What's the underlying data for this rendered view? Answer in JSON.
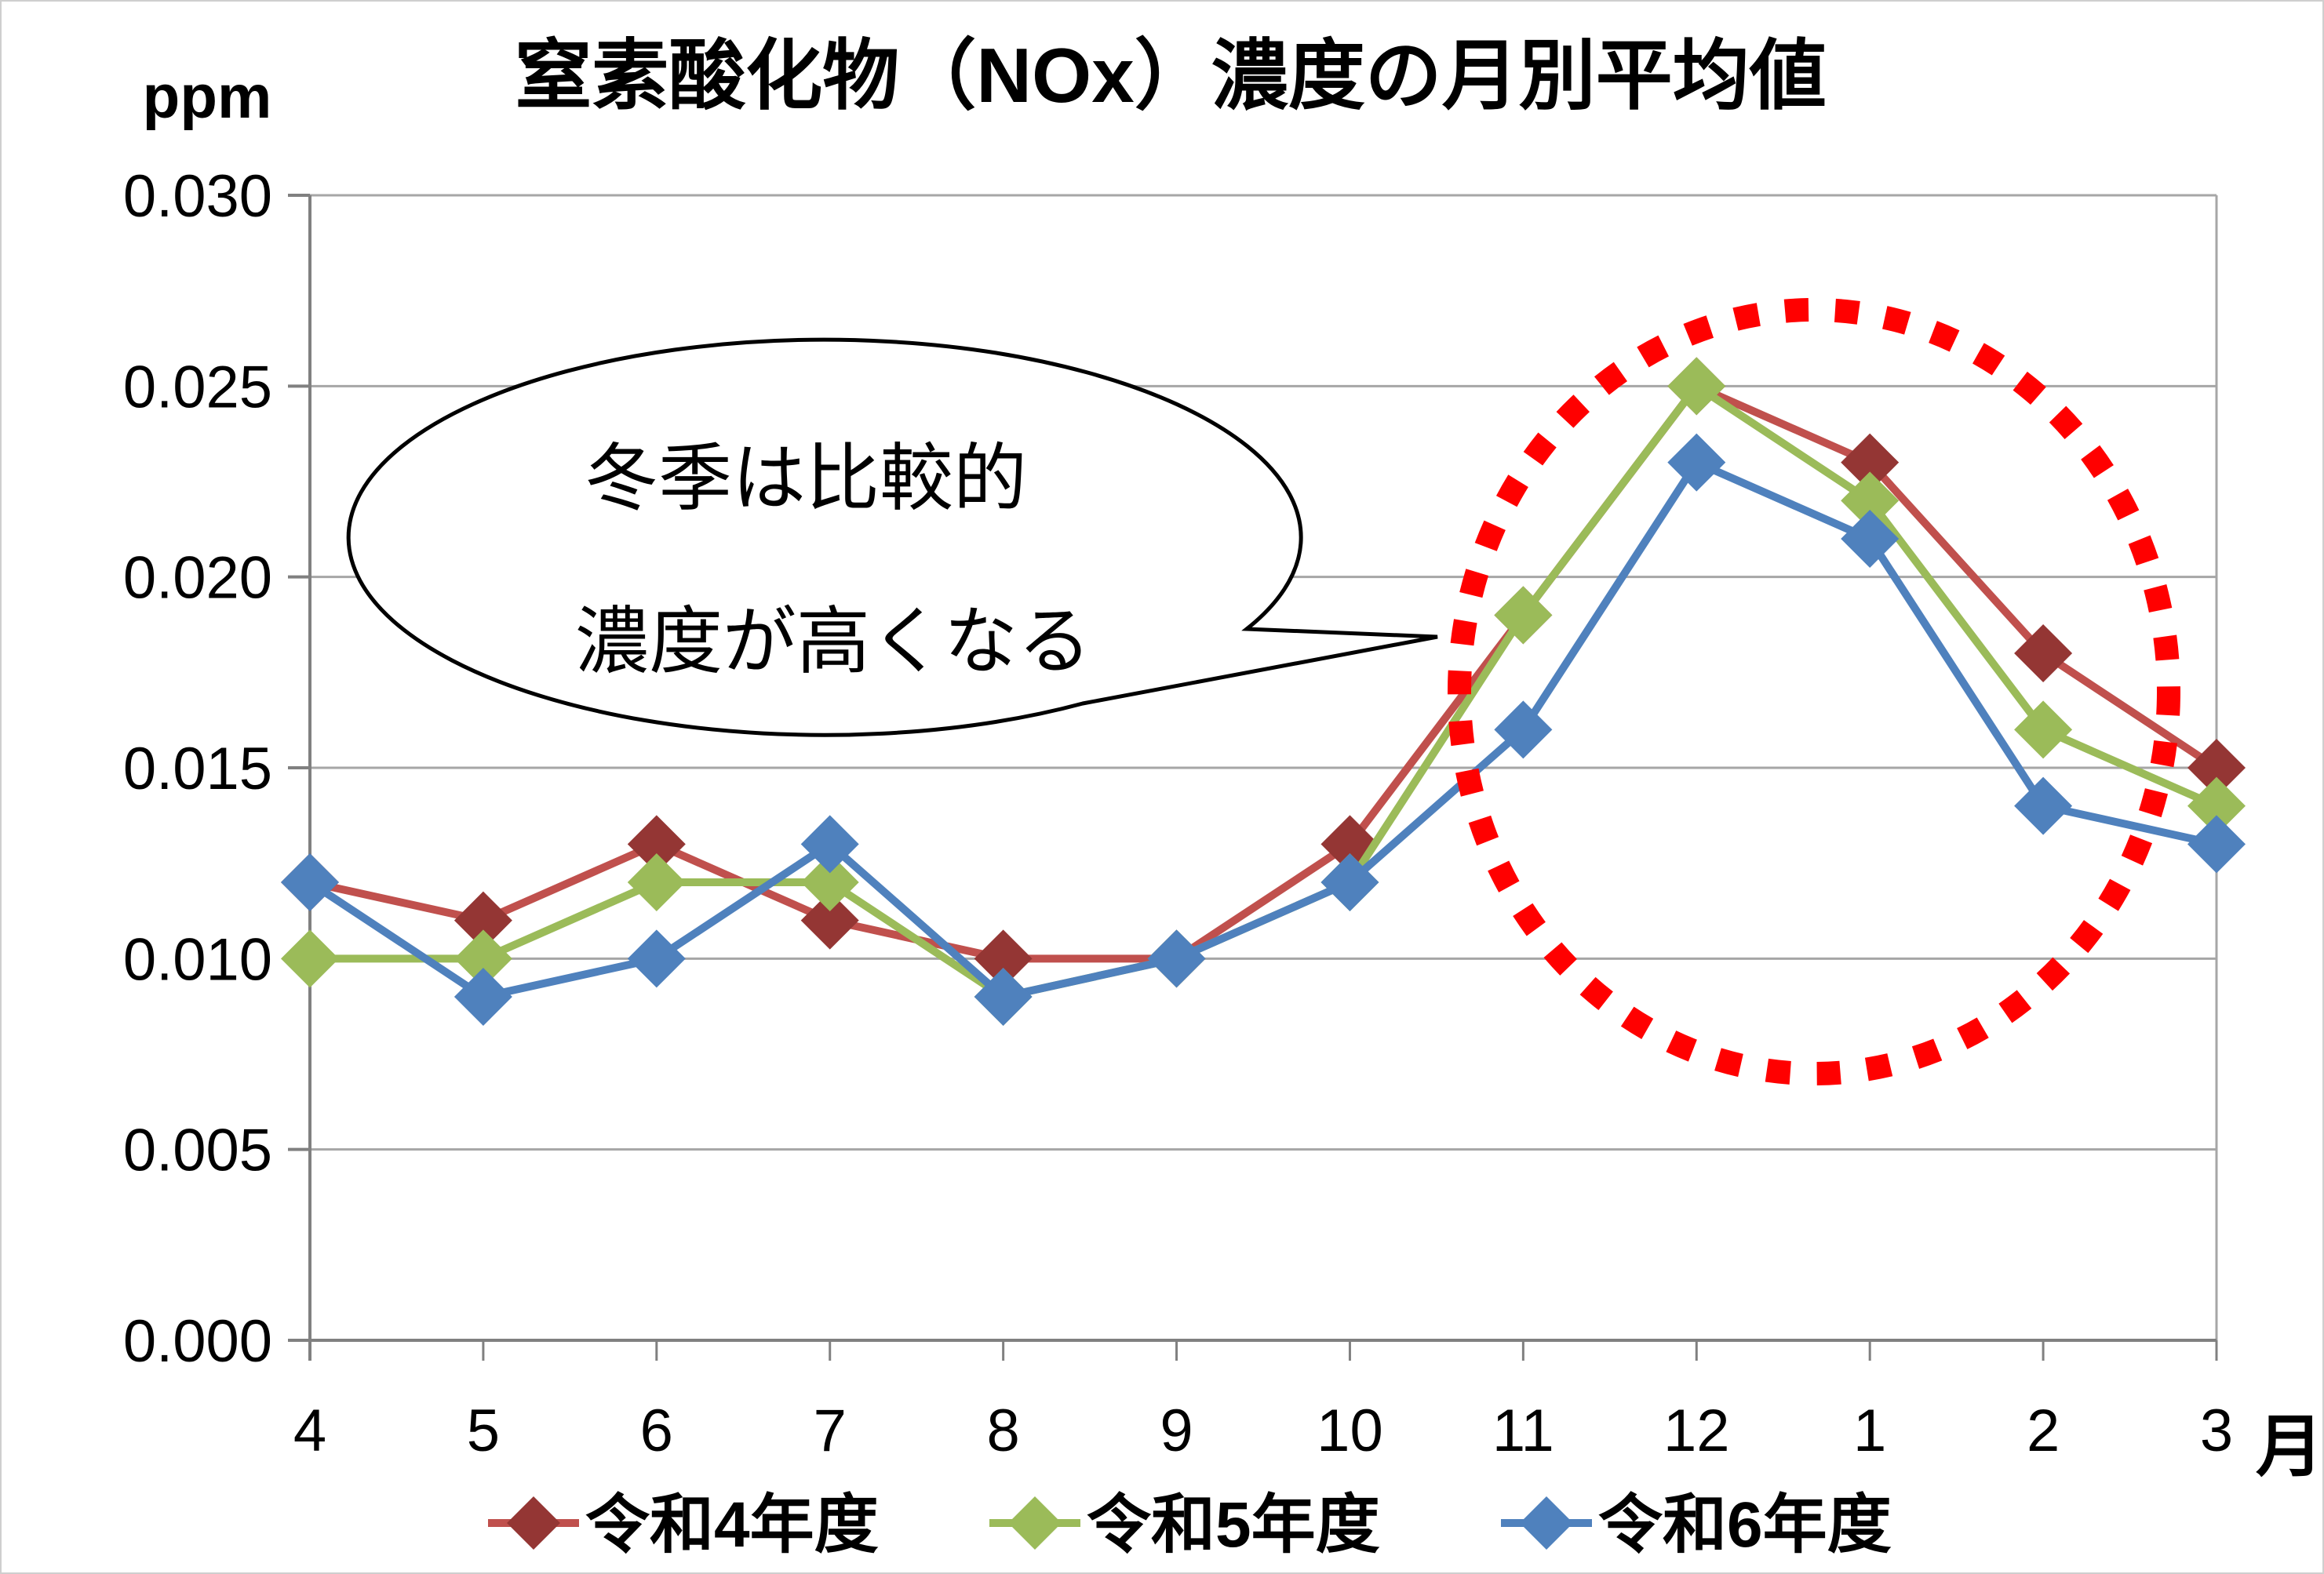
{
  "title": "窒素酸化物（NOx）濃度の月別平均値",
  "y_axis": {
    "unit": "ppm",
    "tick_labels": [
      "0.000",
      "0.005",
      "0.010",
      "0.015",
      "0.020",
      "0.025",
      "0.030"
    ]
  },
  "x_axis": {
    "unit": "月",
    "tick_labels": [
      "4",
      "5",
      "6",
      "7",
      "8",
      "9",
      "10",
      "11",
      "12",
      "1",
      "2",
      "3"
    ]
  },
  "annotation": {
    "lines": [
      "冬季は比較的",
      "濃度が高くなる"
    ]
  },
  "highlight_circle": {
    "color": "#FF0000"
  },
  "colors": {
    "grid": "#A6A6A6",
    "axis": "#808080",
    "text": "#000000",
    "bubble_outline": "#000000"
  },
  "chart_data": {
    "type": "line",
    "title": "窒素酸化物（NOx）濃度の月別平均値",
    "categories": [
      "4",
      "5",
      "6",
      "7",
      "8",
      "9",
      "10",
      "11",
      "12",
      "1",
      "2",
      "3"
    ],
    "x_unit": "月",
    "y_unit": "ppm",
    "ylim": [
      0,
      0.03
    ],
    "y_tick_step": 0.005,
    "grid": "horizontal",
    "legend_position": "bottom",
    "marker": "diamond",
    "series": [
      {
        "name": "令和4年度",
        "line_color": "#C0504D",
        "marker_color": "#943634",
        "values": [
          0.012,
          0.011,
          0.013,
          0.011,
          0.01,
          0.01,
          0.013,
          0.019,
          0.025,
          0.023,
          0.018,
          0.015
        ]
      },
      {
        "name": "令和5年度",
        "line_color": "#9BBB59",
        "marker_color": "#9BBB59",
        "values": [
          0.01,
          0.01,
          0.012,
          0.012,
          0.009,
          0.01,
          0.012,
          0.019,
          0.025,
          0.022,
          0.016,
          0.014
        ]
      },
      {
        "name": "令和6年度",
        "line_color": "#4F81BD",
        "marker_color": "#4F81BD",
        "values": [
          0.012,
          0.009,
          0.01,
          0.013,
          0.009,
          0.01,
          0.012,
          0.016,
          0.023,
          0.021,
          0.014,
          0.013
        ]
      }
    ],
    "annotation": "冬季は比較的 濃度が高くなる"
  }
}
